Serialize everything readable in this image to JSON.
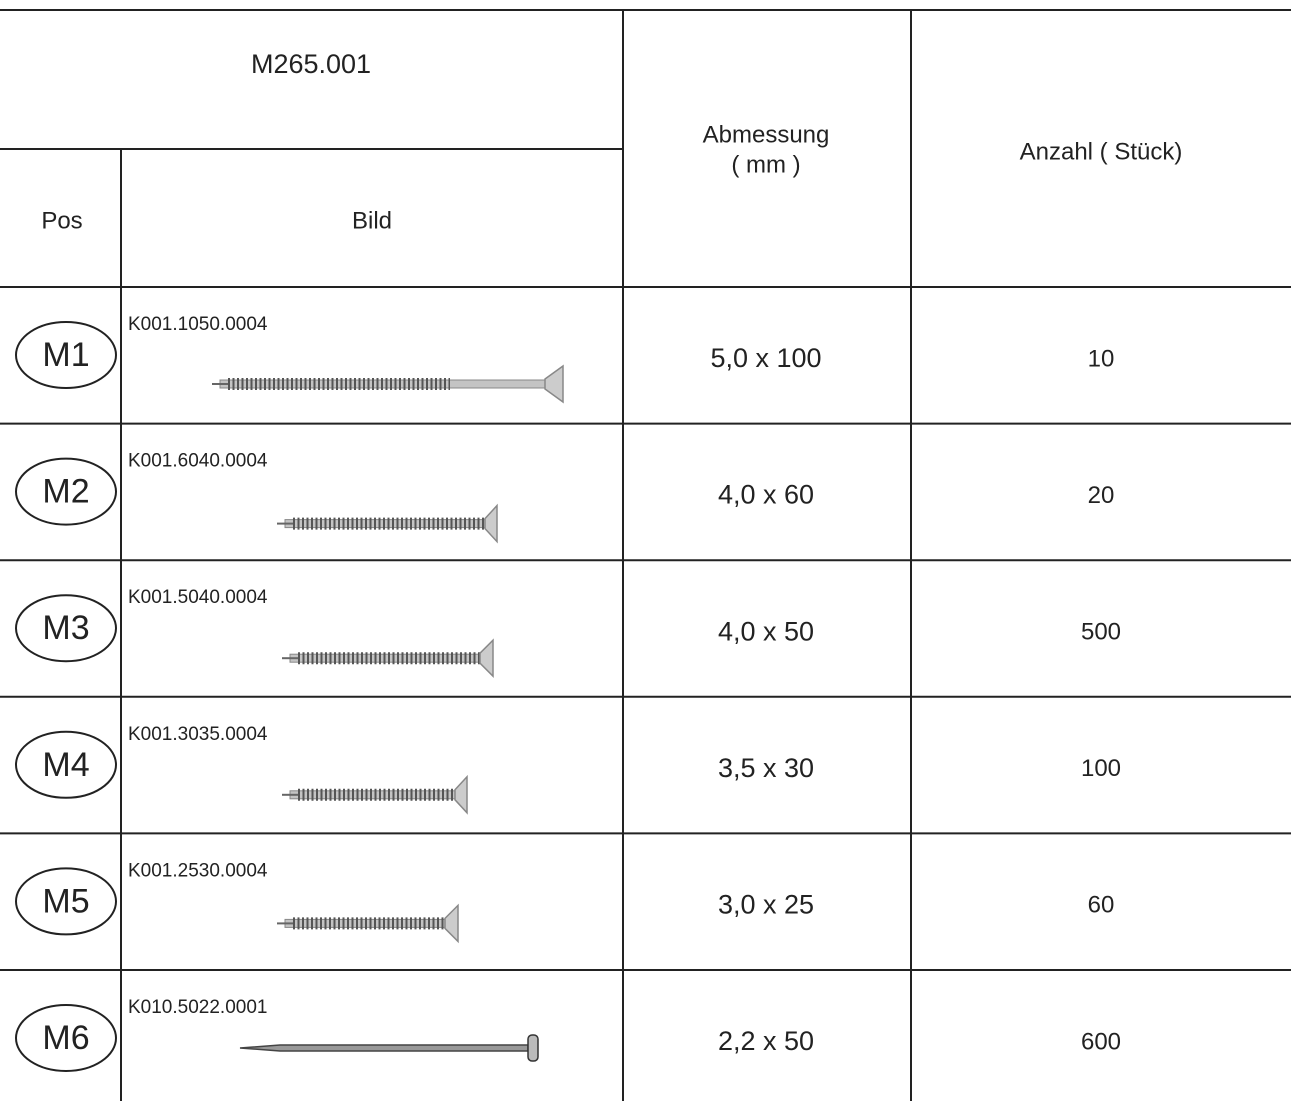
{
  "header": {
    "title": "M265.001",
    "pos": "Pos",
    "bild": "Bild",
    "abmessung": "Abmessung",
    "abmessung_unit": "( mm )",
    "anzahl": "Anzahl  ( Stück)"
  },
  "table": {
    "rows": [
      [
        "M1",
        "K001.1050.0004",
        "5,0 x 100",
        "10"
      ],
      [
        "M2",
        "K001.6040.0004",
        "4,0 x 60",
        "20"
      ],
      [
        "M3",
        "K001.5040.0004",
        "4,0 x 50",
        "500"
      ],
      [
        "M4",
        "K001.3035.0004",
        "3,5 x 30",
        "100"
      ],
      [
        "M5",
        "K001.2530.0004",
        "3,0 x 25",
        "60"
      ],
      [
        "M6",
        "K010.5022.0001",
        "2,2 x 50",
        "600"
      ]
    ]
  }
}
